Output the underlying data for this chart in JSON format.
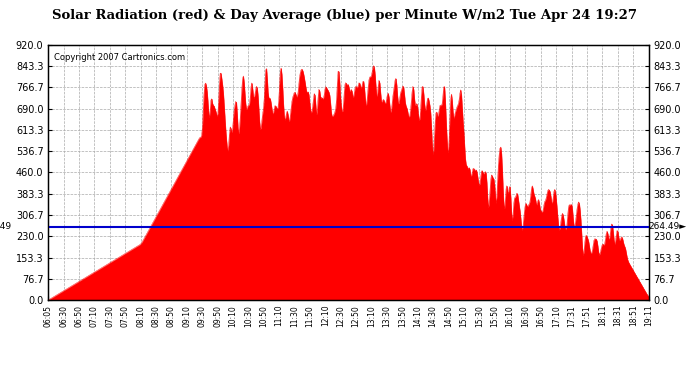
{
  "title": "Solar Radiation (red) & Day Average (blue) per Minute W/m2 Tue Apr 24 19:27",
  "copyright": "Copyright 2007 Cartronics.com",
  "y_min": 0.0,
  "y_max": 920.0,
  "y_ticks": [
    0.0,
    76.7,
    153.3,
    230.0,
    306.7,
    383.3,
    460.0,
    536.7,
    613.3,
    690.0,
    766.7,
    843.3,
    920.0
  ],
  "day_average": 264.49,
  "background_color": "#ffffff",
  "plot_bg_color": "#ffffff",
  "grid_color": "#aaaaaa",
  "fill_color": "#ff0000",
  "line_color": "#ff0000",
  "avg_line_color": "#0000cc",
  "title_fontsize": 13,
  "x_labels": [
    "06:05",
    "06:30",
    "06:50",
    "07:10",
    "07:30",
    "07:50",
    "08:10",
    "08:30",
    "08:50",
    "09:10",
    "09:30",
    "09:50",
    "10:10",
    "10:30",
    "10:50",
    "11:10",
    "11:30",
    "11:50",
    "12:10",
    "12:30",
    "12:50",
    "13:10",
    "13:30",
    "13:50",
    "14:10",
    "14:30",
    "14:50",
    "15:10",
    "15:30",
    "15:50",
    "16:10",
    "16:30",
    "16:50",
    "17:10",
    "17:31",
    "17:51",
    "18:11",
    "18:31",
    "18:51",
    "19:11"
  ]
}
